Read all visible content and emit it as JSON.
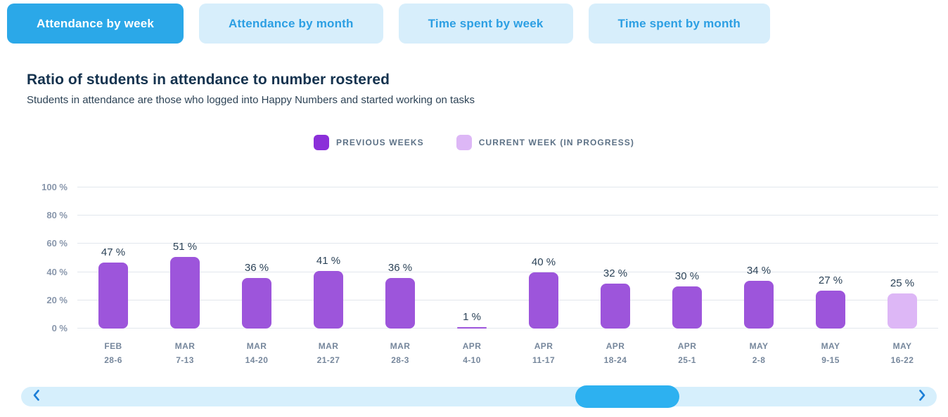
{
  "tabs": [
    {
      "label": "Attendance by week",
      "active": true
    },
    {
      "label": "Attendance by month",
      "active": false
    },
    {
      "label": "Time spent by week",
      "active": false
    },
    {
      "label": "Time spent by month",
      "active": false
    }
  ],
  "header": {
    "title": "Ratio of students in attendance to number rostered",
    "subtitle": "Students in attendance are those who logged into Happy Numbers and started working on tasks"
  },
  "legend": [
    {
      "label": "PREVIOUS WEEKS",
      "color": "#8B2FD9"
    },
    {
      "label": "CURRENT WEEK (IN PROGRESS)",
      "color": "#DDB7F6"
    }
  ],
  "chart_data": {
    "type": "bar",
    "title": "Ratio of students in attendance to number rostered",
    "categories": [
      [
        "FEB",
        "28-6"
      ],
      [
        "MAR",
        "7-13"
      ],
      [
        "MAR",
        "14-20"
      ],
      [
        "MAR",
        "21-27"
      ],
      [
        "MAR",
        "28-3"
      ],
      [
        "APR",
        "4-10"
      ],
      [
        "APR",
        "11-17"
      ],
      [
        "APR",
        "18-24"
      ],
      [
        "APR",
        "25-1"
      ],
      [
        "MAY",
        "2-8"
      ],
      [
        "MAY",
        "9-15"
      ],
      [
        "MAY",
        "16-22"
      ]
    ],
    "values": [
      47,
      51,
      36,
      41,
      36,
      1,
      40,
      32,
      30,
      34,
      27,
      25
    ],
    "value_suffix": " %",
    "series": [
      {
        "name": "PREVIOUS WEEKS",
        "color": "#9D55DB"
      },
      {
        "name": "CURRENT WEEK (IN PROGRESS)",
        "color": "#DDB7F6"
      }
    ],
    "current_week_index": 11,
    "yticks": [
      0,
      20,
      40,
      60,
      80,
      100
    ],
    "ytick_suffix": " %",
    "ylim": [
      0,
      100
    ],
    "grid": true,
    "legend_position": "top-center"
  },
  "scrollbar": {
    "thumb_left_pct": 60.5,
    "thumb_width_pct": 11.4,
    "left_icon": "chevron-left",
    "right_icon": "chevron-right"
  },
  "colors": {
    "tab_active_bg": "#2BA8E8",
    "tab_inactive_bg": "#D7EEFB",
    "tab_inactive_text": "#2C9FE3",
    "bar_previous": "#9D55DB",
    "bar_current": "#DDB7F6",
    "scroll_track": "#D6EFFC",
    "scroll_thumb": "#2DB1F0",
    "chevron": "#1B7ED7"
  }
}
